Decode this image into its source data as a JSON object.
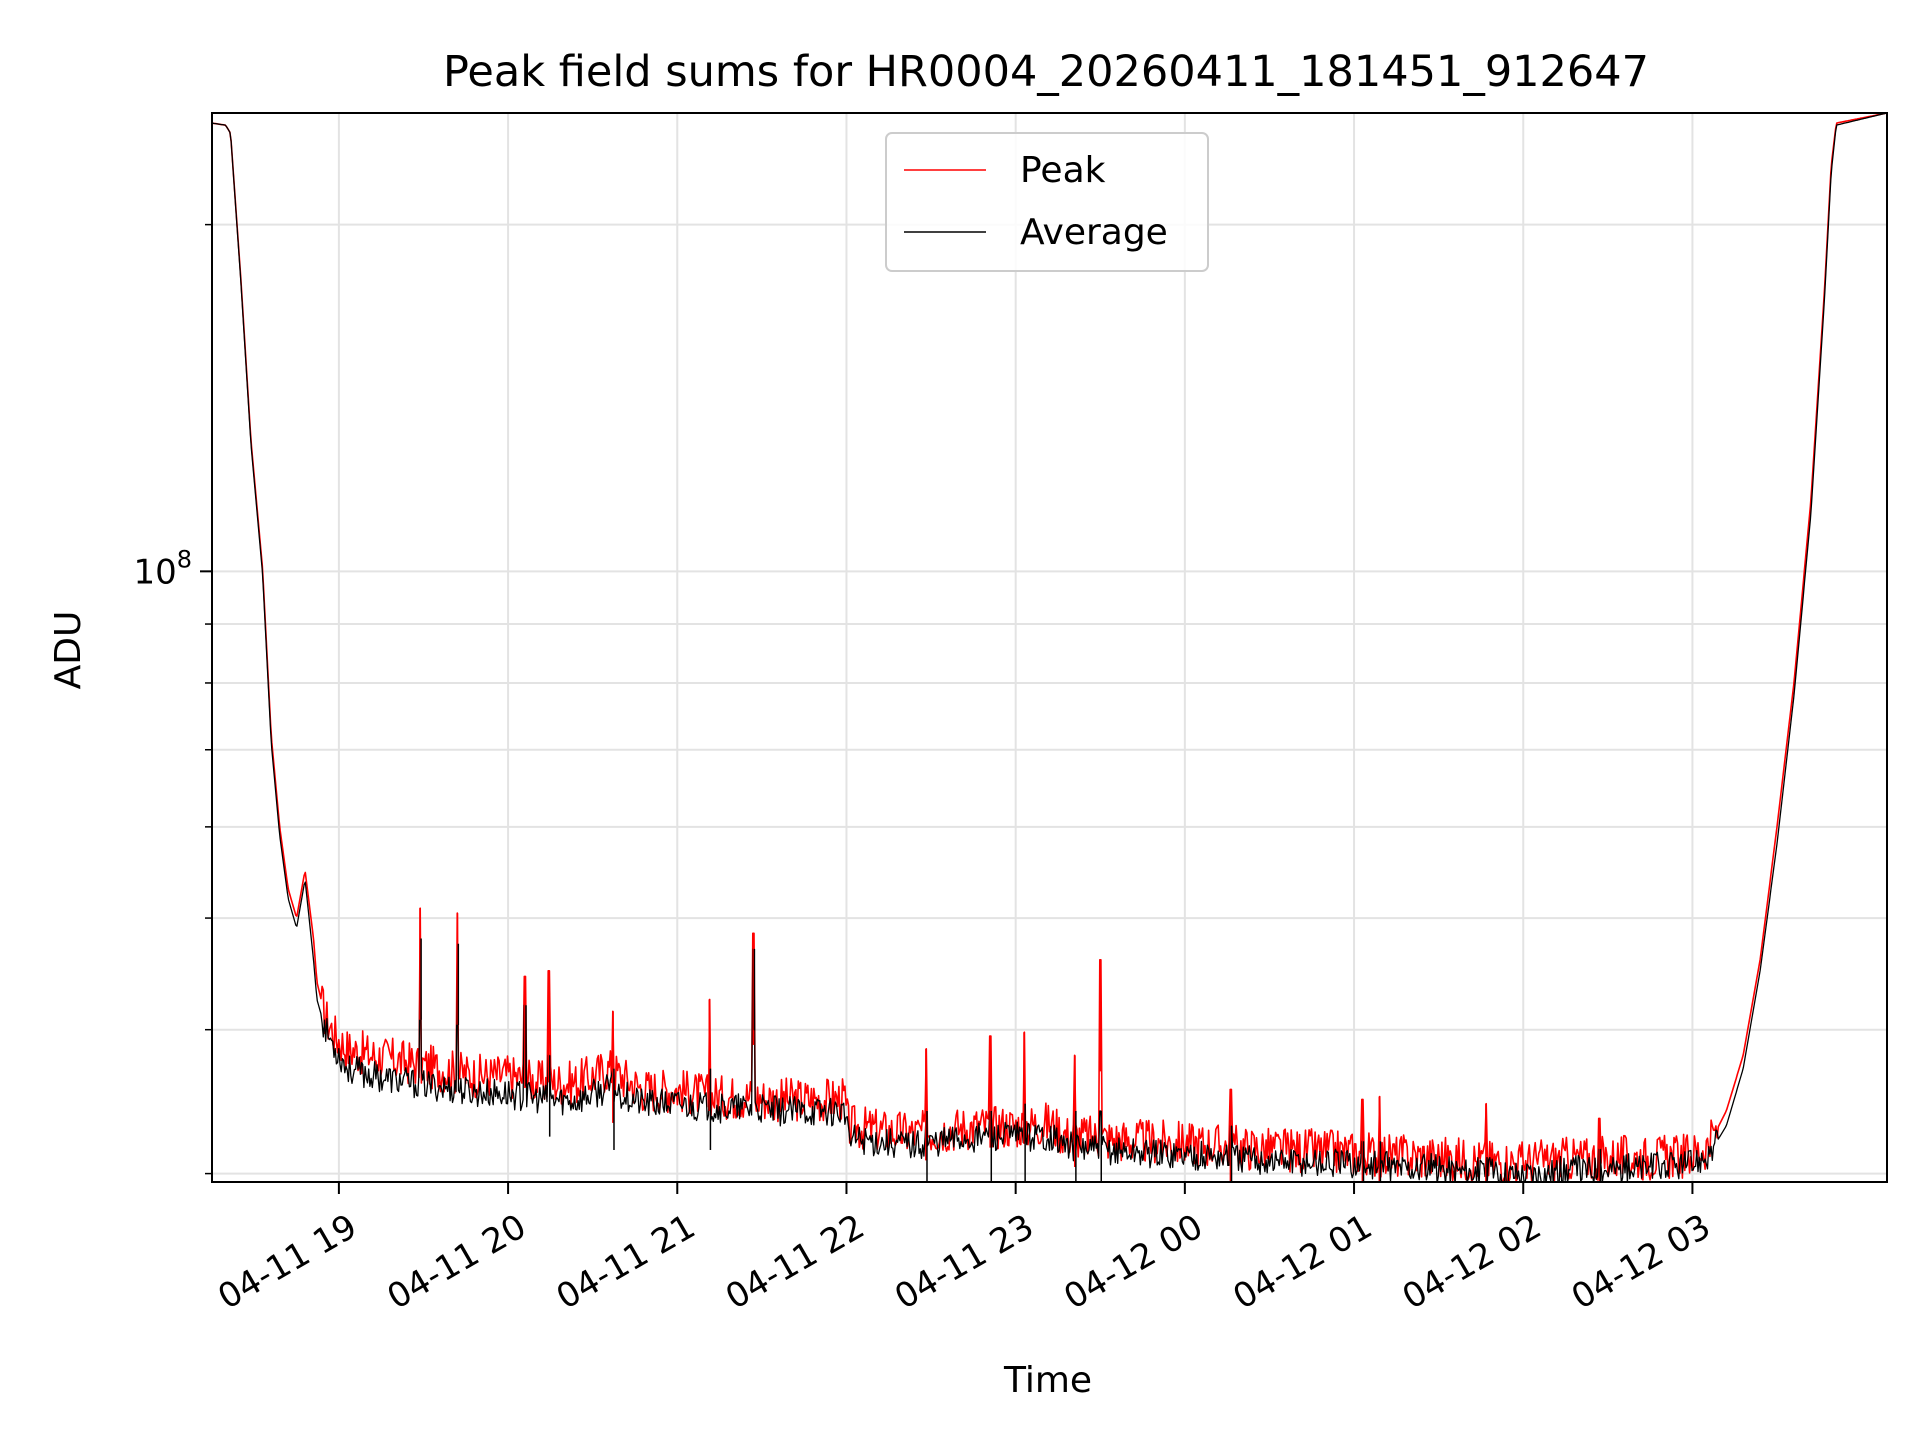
{
  "chart_data": {
    "type": "line",
    "title": "Peak field sums for HR0004_20260411_181451_912647",
    "xlabel": "Time",
    "ylabel": "ADU",
    "yscale": "log",
    "grid": true,
    "legend_position": "top-center",
    "x_range_hours": [
      18.25,
      28.15
    ],
    "y_range": [
      29500000,
      250000000
    ],
    "x_ticks": [
      {
        "hour": 19,
        "label": "04-11 19"
      },
      {
        "hour": 20,
        "label": "04-11 20"
      },
      {
        "hour": 21,
        "label": "04-11 21"
      },
      {
        "hour": 22,
        "label": "04-11 22"
      },
      {
        "hour": 23,
        "label": "04-11 23"
      },
      {
        "hour": 24,
        "label": "04-12 00"
      },
      {
        "hour": 25,
        "label": "04-12 01"
      },
      {
        "hour": 26,
        "label": "04-12 02"
      },
      {
        "hour": 27,
        "label": "04-12 03"
      }
    ],
    "y_major_tick": {
      "value": 100000000,
      "base": "10",
      "exponent": "8"
    },
    "y_minor_ticks": [
      30000000,
      40000000,
      50000000,
      60000000,
      70000000,
      80000000,
      90000000,
      200000000
    ],
    "series": [
      {
        "name": "Peak",
        "color": "#ff0000",
        "x_hours": [
          18.25,
          18.33,
          18.36,
          18.42,
          18.48,
          18.55,
          18.6,
          18.65,
          18.7,
          18.75,
          18.8,
          18.85,
          18.87,
          18.92,
          18.98,
          19.05,
          19.2,
          19.4,
          19.6,
          19.8,
          20.0,
          20.2,
          20.4,
          20.6,
          20.8,
          21.0,
          21.2,
          21.4,
          21.6,
          21.8,
          21.99,
          22.01,
          22.2,
          22.4,
          22.6,
          22.8,
          23.0,
          23.2,
          23.3,
          23.5,
          23.75,
          24.0,
          24.25,
          24.5,
          24.75,
          25.0,
          25.25,
          25.5,
          25.75,
          26.0,
          26.25,
          26.5,
          26.75,
          26.95,
          27.0,
          27.1,
          27.2,
          27.3,
          27.4,
          27.5,
          27.6,
          27.7,
          27.78,
          27.82,
          27.85,
          28.15
        ],
        "values": [
          245000000,
          244000000,
          240000000,
          180000000,
          130000000,
          100000000,
          72000000,
          60000000,
          53000000,
          50000000,
          55000000,
          48000000,
          44000000,
          41000000,
          39500000,
          38500000,
          38000000,
          37500000,
          37000000,
          36500000,
          36500000,
          36000000,
          36000000,
          37000000,
          35500000,
          35500000,
          35000000,
          35000000,
          34800000,
          34800000,
          34800000,
          33000000,
          32700000,
          32500000,
          32800000,
          33000000,
          33000000,
          33200000,
          32400000,
          32200000,
          32000000,
          31900000,
          31700000,
          31500000,
          31400000,
          31300000,
          31100000,
          31000000,
          30800000,
          30700000,
          30900000,
          31000000,
          31000000,
          31100000,
          31200000,
          31800000,
          34000000,
          38000000,
          46000000,
          60000000,
          80000000,
          115000000,
          175000000,
          225000000,
          245000000,
          250000000
        ]
      },
      {
        "name": "Average",
        "color": "#000000",
        "x_hours": [
          18.25,
          18.33,
          18.36,
          18.42,
          18.48,
          18.55,
          18.6,
          18.65,
          18.7,
          18.75,
          18.8,
          18.85,
          18.87,
          18.92,
          18.98,
          19.05,
          19.2,
          19.4,
          19.6,
          19.8,
          20.0,
          20.2,
          20.4,
          20.6,
          20.8,
          21.0,
          21.2,
          21.4,
          21.6,
          21.8,
          21.99,
          22.01,
          22.2,
          22.4,
          22.6,
          22.8,
          23.0,
          23.2,
          23.3,
          23.5,
          23.75,
          24.0,
          24.25,
          24.5,
          24.75,
          25.0,
          25.25,
          25.5,
          25.75,
          26.0,
          26.25,
          26.5,
          26.75,
          26.95,
          27.0,
          27.1,
          27.2,
          27.3,
          27.4,
          27.5,
          27.6,
          27.7,
          27.78,
          27.82,
          27.85,
          28.15
        ],
        "values": [
          245000000,
          244000000,
          240000000,
          179000000,
          129000000,
          99000000,
          71000000,
          59000000,
          52000000,
          49000000,
          54000000,
          46000000,
          42500000,
          40000000,
          38500000,
          37000000,
          36500000,
          36000000,
          35700000,
          35300000,
          35200000,
          34800000,
          34700000,
          35600000,
          34500000,
          34500000,
          34200000,
          34200000,
          34000000,
          34000000,
          34000000,
          32200000,
          32000000,
          31800000,
          32100000,
          32300000,
          32300000,
          32400000,
          31700000,
          31500000,
          31300000,
          31200000,
          31000000,
          30800000,
          30700000,
          30600000,
          30400000,
          30300000,
          30100000,
          30000000,
          30200000,
          30300000,
          30400000,
          30500000,
          30600000,
          31200000,
          33000000,
          37000000,
          45000000,
          58000000,
          78000000,
          112000000,
          172000000,
          222000000,
          244000000,
          250000000
        ]
      }
    ],
    "spikes": [
      {
        "hour": 19.48,
        "peak": 51000000,
        "average": 48000000
      },
      {
        "hour": 19.7,
        "peak": 50500000,
        "average": 47500000
      },
      {
        "hour": 20.1,
        "peak": 44500000,
        "average": 42000000
      },
      {
        "hour": 20.24,
        "peak": 45000000,
        "average": 38000000
      },
      {
        "hour": 20.62,
        "peak": 41500000,
        "average": 37000000
      },
      {
        "hour": 21.19,
        "peak": 42500000,
        "average": 37000000
      },
      {
        "hour": 21.45,
        "peak": 48500000,
        "average": 47000000
      },
      {
        "hour": 22.47,
        "peak": 38500000,
        "average": 34000000
      },
      {
        "hour": 22.85,
        "peak": 39500000,
        "average": 34000000
      },
      {
        "hour": 23.05,
        "peak": 39800000,
        "average": 34500000
      },
      {
        "hour": 23.35,
        "peak": 38000000,
        "average": 34000000
      },
      {
        "hour": 23.5,
        "peak": 46000000,
        "average": 34000000
      },
      {
        "hour": 24.27,
        "peak": 35500000,
        "average": 33000000
      },
      {
        "hour": 25.05,
        "peak": 34800000,
        "average": 32000000
      },
      {
        "hour": 25.15,
        "peak": 35000000,
        "average": 32000000
      },
      {
        "hour": 25.78,
        "peak": 34500000,
        "average": 31000000
      },
      {
        "hour": 26.45,
        "peak": 33500000,
        "average": 31500000
      }
    ]
  }
}
